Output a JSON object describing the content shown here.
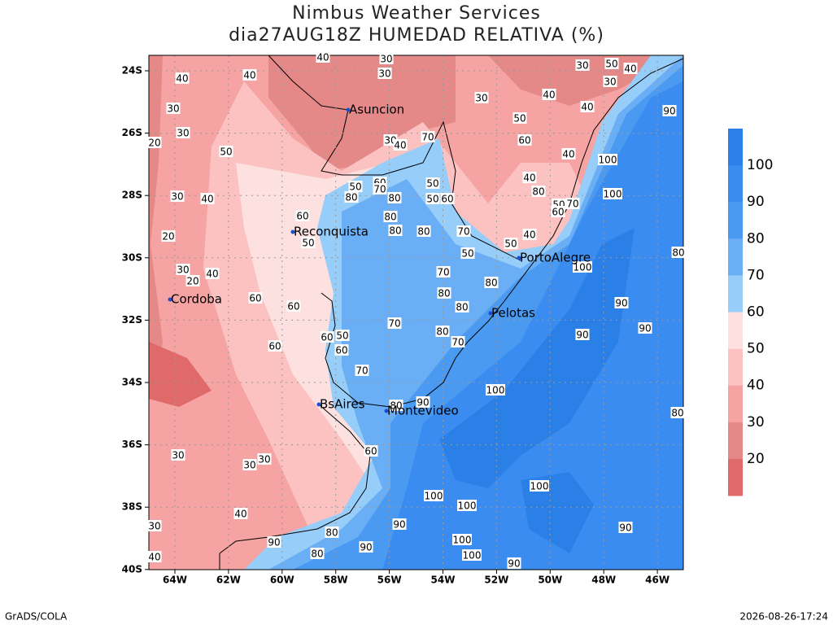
{
  "header": {
    "title": "Nimbus Weather Services",
    "subtitle": "dia27AUG18Z HUMEDAD RELATIVA (%)"
  },
  "lat_ticks": [
    "24S",
    "26S",
    "28S",
    "30S",
    "32S",
    "34S",
    "36S",
    "38S",
    "40S"
  ],
  "lon_ticks": [
    "64W",
    "62W",
    "60W",
    "58W",
    "56W",
    "54W",
    "52W",
    "50W",
    "48W",
    "46W"
  ],
  "cities": [
    "Asuncion",
    "Reconquista",
    "Cordoba",
    "BsAires",
    "Montevideo",
    "PortoAlegre",
    "Pelotas"
  ],
  "colorbar": {
    "levels": [
      100,
      90,
      80,
      70,
      60,
      50,
      40,
      30,
      20
    ],
    "colors": [
      "#2b80e8",
      "#3a8cf0",
      "#4a9af2",
      "#6aaef5",
      "#96cdf9",
      "#fde0e0",
      "#fcc2c2",
      "#f5a3a3",
      "#e58888",
      "#e06a6a"
    ]
  },
  "contour_labels": [
    40,
    30,
    30,
    30,
    50,
    40,
    30,
    40,
    40,
    30,
    30,
    20,
    50,
    30,
    40,
    40,
    50,
    60,
    40,
    100,
    90,
    30,
    40,
    70,
    30,
    40,
    60,
    50,
    80,
    70,
    80,
    50,
    50,
    60,
    40,
    80,
    100,
    50,
    70,
    60,
    60,
    80,
    80,
    80,
    70,
    50,
    20,
    40,
    50,
    50,
    100,
    80,
    30,
    20,
    40,
    70,
    80,
    80,
    60,
    60,
    80,
    70,
    90,
    90,
    90,
    80,
    70,
    60,
    50,
    60,
    60,
    70,
    100,
    90,
    80,
    60,
    30,
    30,
    30,
    100,
    100,
    100,
    40,
    30,
    90,
    80,
    90,
    90,
    100,
    90,
    80,
    100,
    40,
    90,
    80
  ],
  "footer": {
    "left": "GrADS/COLA",
    "right": "2026-08-26-17:24"
  }
}
